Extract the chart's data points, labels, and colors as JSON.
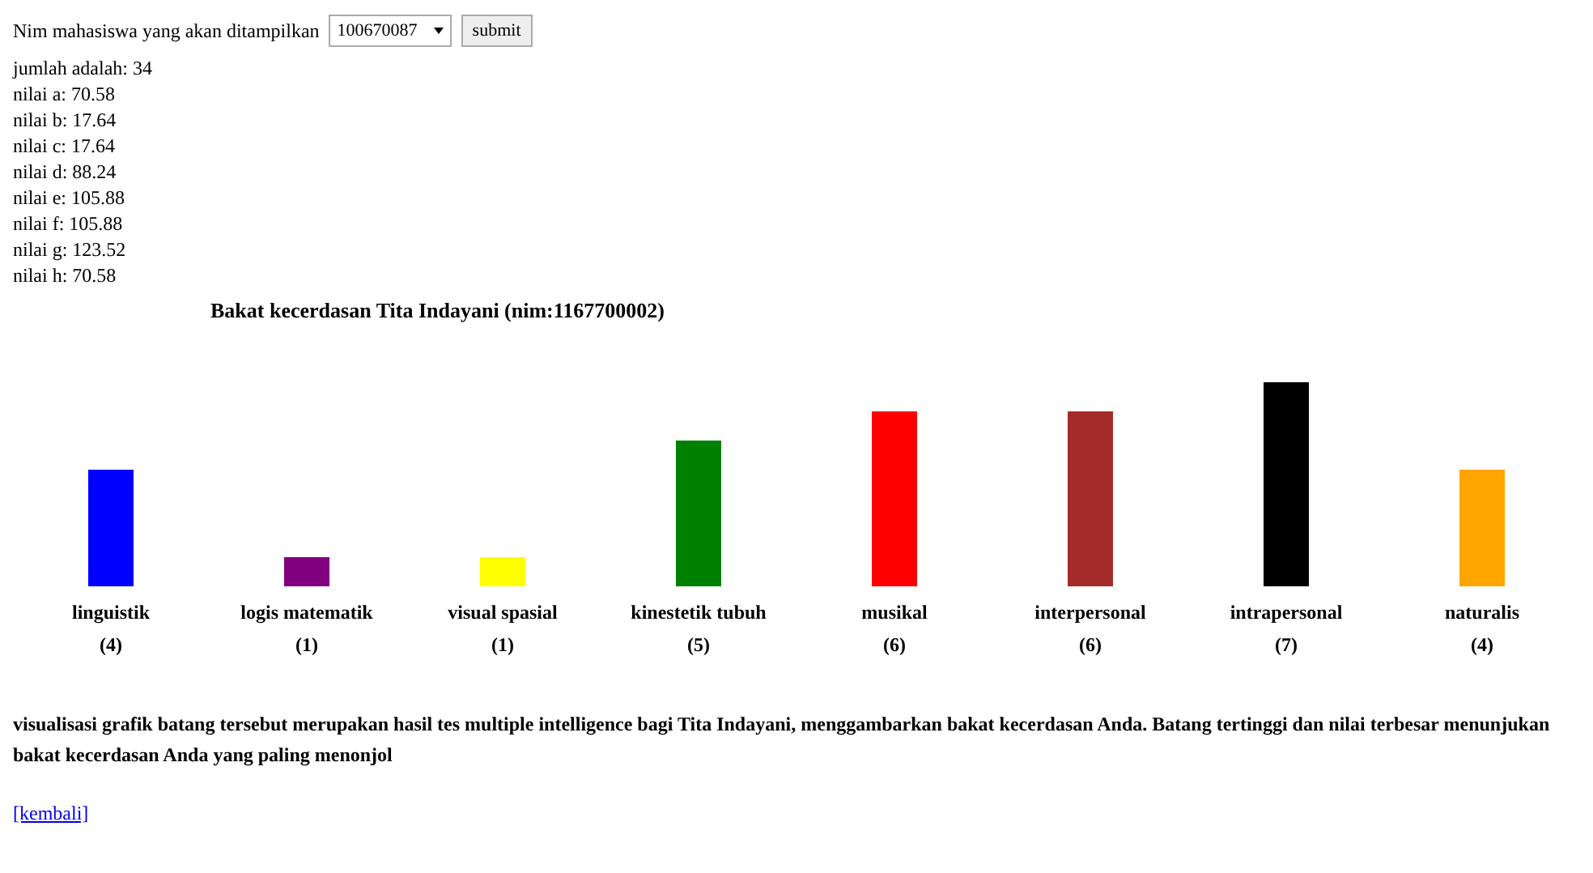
{
  "chart_data": {
    "type": "bar",
    "title": "Bakat kecerdasan Tita Indayani (nim:1167700002)",
    "categories": [
      "linguistik",
      "logis matematik",
      "visual spasial",
      "kinestetik tubuh",
      "musikal",
      "interpersonal",
      "intrapersonal",
      "naturalis"
    ],
    "values": [
      4,
      1,
      1,
      5,
      6,
      6,
      7,
      4
    ],
    "colors": [
      "#0000ff",
      "#800080",
      "#ffff00",
      "#008000",
      "#ff0000",
      "#a52a2a",
      "#000000",
      "#ffa500"
    ],
    "value_labels": [
      "(4)",
      "(1)",
      "(1)",
      "(5)",
      "(6)",
      "(6)",
      "(7)",
      "(4)"
    ],
    "annotations": [
      "Nim mahasiswa yang akan ditampilkan",
      "100670087",
      "submit",
      "jumlah adalah: 34",
      "nilai a: 70.58",
      "nilai b: 17.64",
      "nilai c: 17.64",
      "nilai d: 88.24",
      "nilai e: 105.88",
      "nilai f: 105.88",
      "nilai g: 123.52",
      "nilai h: 70.58",
      "visualisasi grafik batang tersebut merupakan hasil tes multiple intelligence bagi Tita Indayani, menggambarkan bakat kecerdasan Anda. Batang tertinggi dan nilai terbesar menunjukan bakat kecerdasan Anda yang paling menonjol",
      "[kembali]"
    ]
  }
}
